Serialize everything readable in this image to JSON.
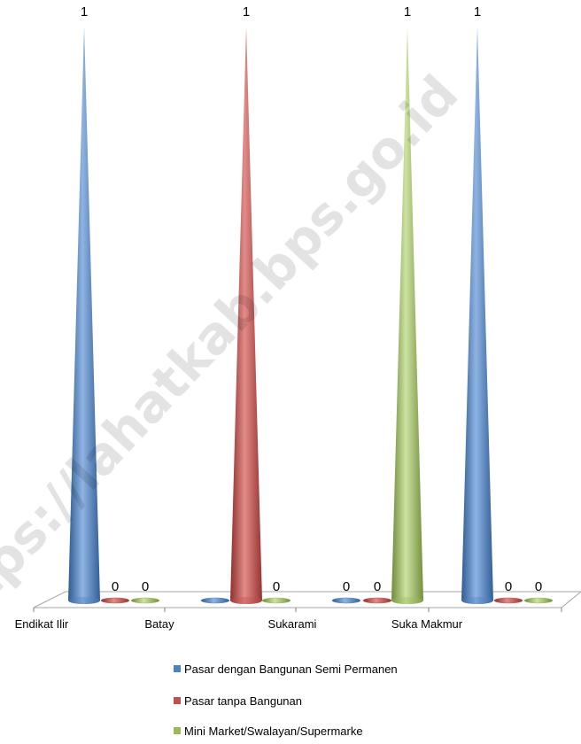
{
  "chart_data": {
    "type": "bar",
    "bar_shape": "cone-3d",
    "categories": [
      "Endikat Ilir",
      "Batay",
      "Sukarami",
      "Suka Makmur"
    ],
    "series": [
      {
        "name": "Pasar dengan Bangunan Semi Permanen",
        "color": "#4f81bd",
        "values": [
          1,
          0,
          0,
          1
        ],
        "labels": [
          "1",
          "",
          "0",
          "1"
        ]
      },
      {
        "name": "Pasar tanpa Bangunan",
        "color": "#c0504d",
        "values": [
          0,
          1,
          0,
          0
        ],
        "labels": [
          "0",
          "1",
          "0",
          "0"
        ]
      },
      {
        "name": "Mini Market/Swalayan/Supermarke",
        "color": "#9bbb59",
        "values": [
          0,
          0,
          1,
          0
        ],
        "labels": [
          "0",
          "0",
          "1",
          "0"
        ]
      }
    ],
    "ylim": [
      0,
      1
    ],
    "grid": false,
    "legend_position": "bottom"
  },
  "watermark": {
    "text": "https://lahatkab.bps.go.id",
    "color": "#000000"
  }
}
